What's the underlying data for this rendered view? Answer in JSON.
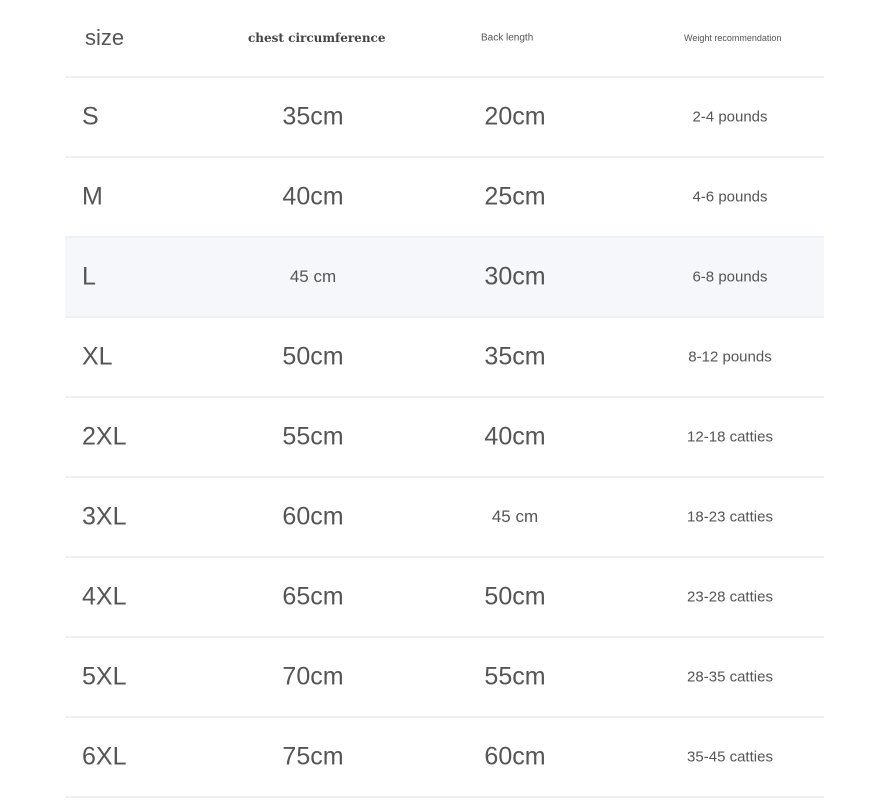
{
  "table": {
    "headers": [
      "size",
      "chest circumference",
      "Back length",
      "Weight recommendation"
    ],
    "highlight_row": 2,
    "highlight_color": "#f5f7fa",
    "rows": [
      [
        "S",
        "35cm",
        "20cm",
        "2-4 pounds"
      ],
      [
        "M",
        "40cm",
        "25cm",
        "4-6 pounds"
      ],
      [
        "L",
        "45 cm",
        "30cm",
        "6-8 pounds"
      ],
      [
        "XL",
        "50cm",
        "35cm",
        "8-12 pounds"
      ],
      [
        "2XL",
        "55cm",
        "40cm",
        "12-18 catties"
      ],
      [
        "3XL",
        "60cm",
        "45 cm",
        "18-23 catties"
      ],
      [
        "4XL",
        "65cm",
        "50cm",
        "23-28 catties"
      ],
      [
        "5XL",
        "70cm",
        "55cm",
        "28-35 catties"
      ],
      [
        "6XL",
        "75cm",
        "60cm",
        "35-45 catties"
      ]
    ]
  }
}
